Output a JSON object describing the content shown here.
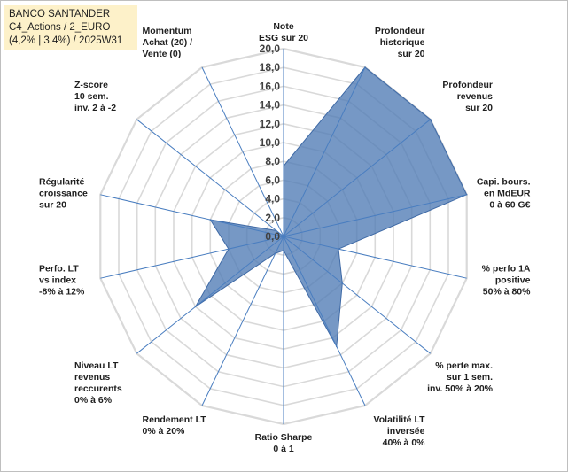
{
  "chart_data": {
    "type": "radar",
    "title_lines": [
      "BANCO SANTANDER",
      "C4_Actions / 2_EURO",
      "(4,2% | 3,4%) / 2025W31"
    ],
    "radial_ticks": [
      "0,0",
      "2,0",
      "4,0",
      "6,0",
      "8,0",
      "10,0",
      "12,0",
      "14,0",
      "16,0",
      "18,0",
      "20,0"
    ],
    "rlim": [
      0,
      20
    ],
    "grid": true,
    "categories": [
      [
        "Note",
        "ESG sur 20"
      ],
      [
        "Profondeur",
        "historique",
        "sur 20"
      ],
      [
        "Profondeur",
        "revenus",
        "sur 20"
      ],
      [
        "Capi. bours.",
        "en MdEUR",
        "0 à 60 G€"
      ],
      [
        "% perfo 1A",
        "positive",
        "50% à 80%"
      ],
      [
        "% perte max.",
        "sur 1 sem.",
        "inv. 50% à 20%"
      ],
      [
        "Volatilité LT",
        "inversée",
        "40% à 0%"
      ],
      [
        "Ratio Sharpe",
        "0 à 1"
      ],
      [
        "Rendement LT",
        "0% à 20%"
      ],
      [
        "Niveau LT",
        "revenus",
        "reccurents",
        "0% à 6%"
      ],
      [
        "Perfo. LT",
        "vs index",
        "-8% à 12%"
      ],
      [
        "Régularité",
        "croissance",
        "sur 20"
      ],
      [
        "Z-score",
        "10 sem.",
        "inv. 2 à -2"
      ],
      [
        "Momentum",
        "Achat (20) /",
        "Vente (0)"
      ]
    ],
    "series": [
      {
        "values": [
          7.5,
          20,
          20,
          20,
          6,
          8,
          13,
          1.5,
          2,
          12,
          6,
          8,
          1,
          0
        ]
      }
    ],
    "colors": {
      "fill": "#4f7bb5",
      "stroke": "#3f6aa6",
      "grid": "#d9d9d9",
      "spoke": "#4a7ec0"
    }
  }
}
